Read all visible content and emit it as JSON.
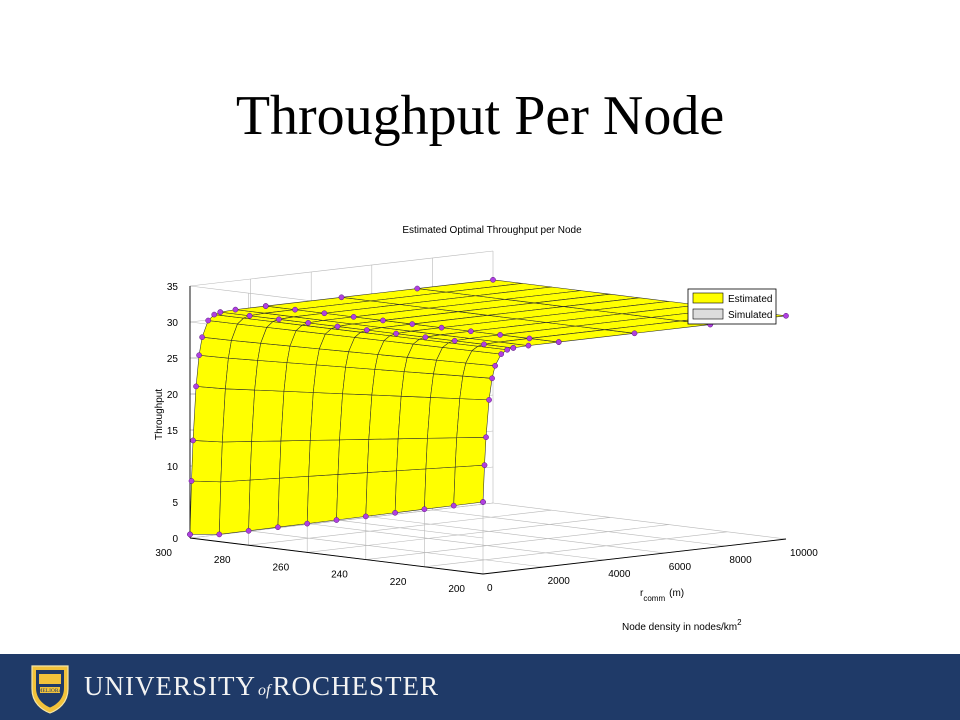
{
  "slide": {
    "title": "Throughput Per Node"
  },
  "footer": {
    "university_word": "UNIVERSITY",
    "of_word": "of",
    "rochester_word": "ROCHESTER",
    "shield_motto": "MELIORA"
  },
  "colors": {
    "footer_bg": "#1f3a68",
    "estimated_fill": "#ffff00",
    "simulated_fill": "#dcdcdc",
    "marker": "#b040e0"
  },
  "chart_data": {
    "type": "surface3d",
    "title": "Estimated Optimal Throughput per Node",
    "zlabel": "Throughput",
    "xlabel_main": "r",
    "xlabel_sub": "comm",
    "xlabel_unit": "(m)",
    "ylabel_main": "Node density in nodes/km",
    "ylabel_sup": "2",
    "x_ticks": [
      "0",
      "2000",
      "4000",
      "6000",
      "8000",
      "10000"
    ],
    "y_ticks": [
      "300",
      "280",
      "260",
      "240",
      "220",
      "200"
    ],
    "z_ticks": [
      "0",
      "5",
      "10",
      "15",
      "20",
      "25",
      "30",
      "35"
    ],
    "xlim": [
      0,
      10000
    ],
    "ylim": [
      200,
      300
    ],
    "zlim": [
      0,
      35
    ],
    "legend": {
      "position": "top-right",
      "entries": [
        "Estimated",
        "Simulated"
      ]
    },
    "density_levels": [
      300,
      290,
      280,
      270,
      260,
      250,
      240,
      230,
      220,
      210,
      200
    ],
    "r_samples": [
      0,
      50,
      100,
      200,
      300,
      400,
      600,
      800,
      1000,
      1500,
      2500,
      5000,
      7500,
      10000
    ],
    "throughput_at_r0": [
      0.5,
      1,
      2,
      3,
      4,
      5,
      6,
      7,
      8,
      9,
      10
    ],
    "throughput_saturated": 31,
    "grid": true
  }
}
